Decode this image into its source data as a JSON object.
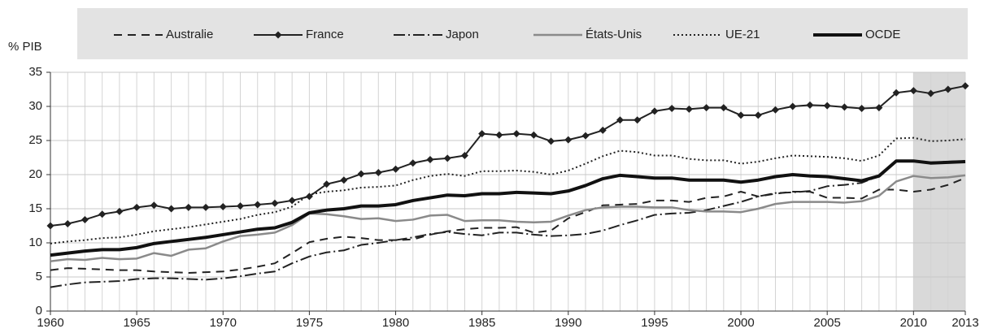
{
  "chart_data": {
    "type": "line",
    "ylabel": "% PIB",
    "x": [
      1960,
      1961,
      1962,
      1963,
      1964,
      1965,
      1966,
      1967,
      1968,
      1969,
      1970,
      1971,
      1972,
      1973,
      1974,
      1975,
      1976,
      1977,
      1978,
      1979,
      1980,
      1981,
      1982,
      1983,
      1984,
      1985,
      1986,
      1987,
      1988,
      1989,
      1990,
      1991,
      1992,
      1993,
      1994,
      1995,
      1996,
      1997,
      1998,
      1999,
      2000,
      2001,
      2002,
      2003,
      2004,
      2005,
      2006,
      2007,
      2008,
      2009,
      2010,
      2011,
      2012,
      2013
    ],
    "xlim": [
      1960,
      2013
    ],
    "xticks": [
      1960,
      1965,
      1970,
      1975,
      1980,
      1985,
      1990,
      1995,
      2000,
      2005,
      2010,
      2013
    ],
    "ylim": [
      0,
      35
    ],
    "yticks": [
      0,
      5,
      10,
      15,
      20,
      25,
      30,
      35
    ],
    "grid": true,
    "shaded_range": [
      2010,
      2013
    ],
    "series": [
      {
        "name": "Australie",
        "color": "#222222",
        "width": 2,
        "dash": "10,7",
        "values": [
          6.0,
          6.3,
          6.2,
          6.1,
          6.0,
          6.0,
          5.8,
          5.7,
          5.6,
          5.7,
          5.8,
          6.1,
          6.5,
          7.0,
          8.5,
          10.1,
          10.6,
          10.9,
          10.7,
          10.4,
          10.4,
          10.5,
          11.2,
          11.7,
          12.0,
          12.2,
          12.2,
          12.3,
          11.5,
          11.8,
          13.6,
          14.5,
          15.5,
          15.6,
          15.7,
          16.2,
          16.2,
          16.0,
          16.6,
          16.8,
          17.5,
          16.8,
          17.2,
          17.5,
          17.5,
          16.6,
          16.6,
          16.5,
          17.8,
          17.8,
          17.5,
          17.8,
          18.5,
          19.5
        ]
      },
      {
        "name": "France",
        "color": "#222222",
        "width": 2,
        "marker": "diamond",
        "values": [
          12.5,
          12.8,
          13.4,
          14.2,
          14.6,
          15.2,
          15.5,
          15.0,
          15.2,
          15.2,
          15.3,
          15.4,
          15.6,
          15.8,
          16.2,
          16.8,
          18.6,
          19.2,
          20.1,
          20.3,
          20.8,
          21.7,
          22.2,
          22.4,
          22.8,
          26.0,
          25.8,
          26.0,
          25.8,
          24.9,
          25.1,
          25.7,
          26.5,
          28.0,
          28.0,
          29.3,
          29.7,
          29.6,
          29.8,
          29.8,
          28.7,
          28.7,
          29.5,
          30.0,
          30.2,
          30.1,
          29.9,
          29.7,
          29.8,
          32.0,
          32.3,
          31.9,
          32.5,
          33.0
        ]
      },
      {
        "name": "Japon",
        "color": "#222222",
        "width": 2,
        "dash": "14,4,2,4",
        "values": [
          3.5,
          3.9,
          4.2,
          4.3,
          4.4,
          4.7,
          4.8,
          4.8,
          4.7,
          4.6,
          4.8,
          5.1,
          5.5,
          5.8,
          7.0,
          8.0,
          8.6,
          8.9,
          9.7,
          10.0,
          10.4,
          10.8,
          11.3,
          11.6,
          11.3,
          11.1,
          11.5,
          11.5,
          11.2,
          11.0,
          11.1,
          11.3,
          11.8,
          12.6,
          13.3,
          14.1,
          14.3,
          14.4,
          14.8,
          15.4,
          16.0,
          16.8,
          17.3,
          17.4,
          17.6,
          18.3,
          18.5,
          18.8,
          19.8,
          21.9,
          22.0,
          21.8,
          21.9,
          22.0
        ]
      },
      {
        "name": "États-Unis",
        "color": "#8a8a8a",
        "width": 2.5,
        "values": [
          7.3,
          7.6,
          7.5,
          7.8,
          7.6,
          7.7,
          8.5,
          8.1,
          9.0,
          9.2,
          10.2,
          11.0,
          11.2,
          11.5,
          12.6,
          14.3,
          14.2,
          13.9,
          13.5,
          13.6,
          13.2,
          13.4,
          14.0,
          14.1,
          13.2,
          13.3,
          13.3,
          13.1,
          13.0,
          13.1,
          14.0,
          14.8,
          15.2,
          15.3,
          15.3,
          15.2,
          15.2,
          14.8,
          14.6,
          14.6,
          14.5,
          15.0,
          15.7,
          16.0,
          16.0,
          16.0,
          15.9,
          16.1,
          16.9,
          19.0,
          19.8,
          19.5,
          19.6,
          19.9
        ]
      },
      {
        "name": "UE-21",
        "color": "#222222",
        "width": 2,
        "dash": "2,3",
        "values": [
          9.9,
          10.2,
          10.4,
          10.7,
          10.8,
          11.2,
          11.7,
          12.0,
          12.3,
          12.7,
          13.1,
          13.5,
          14.1,
          14.5,
          15.3,
          17.1,
          17.5,
          17.7,
          18.1,
          18.2,
          18.4,
          19.2,
          19.8,
          20.1,
          19.8,
          20.5,
          20.5,
          20.6,
          20.4,
          20.0,
          20.6,
          21.6,
          22.7,
          23.5,
          23.3,
          22.8,
          22.8,
          22.3,
          22.1,
          22.1,
          21.6,
          21.9,
          22.4,
          22.8,
          22.7,
          22.6,
          22.4,
          22.0,
          22.8,
          25.3,
          25.4,
          24.9,
          25.0,
          25.2
        ]
      },
      {
        "name": "OCDE",
        "color": "#111111",
        "width": 4,
        "values": [
          8.2,
          8.5,
          8.8,
          9.0,
          9.0,
          9.3,
          9.9,
          10.2,
          10.5,
          10.8,
          11.2,
          11.6,
          12.0,
          12.2,
          13.0,
          14.4,
          14.8,
          15.0,
          15.4,
          15.4,
          15.6,
          16.2,
          16.6,
          17.0,
          16.9,
          17.2,
          17.2,
          17.4,
          17.3,
          17.2,
          17.6,
          18.4,
          19.4,
          19.9,
          19.7,
          19.5,
          19.5,
          19.2,
          19.2,
          19.2,
          18.9,
          19.2,
          19.7,
          20.0,
          19.8,
          19.7,
          19.4,
          19.1,
          19.8,
          22.0,
          22.0,
          21.7,
          21.8,
          21.9
        ]
      }
    ]
  }
}
